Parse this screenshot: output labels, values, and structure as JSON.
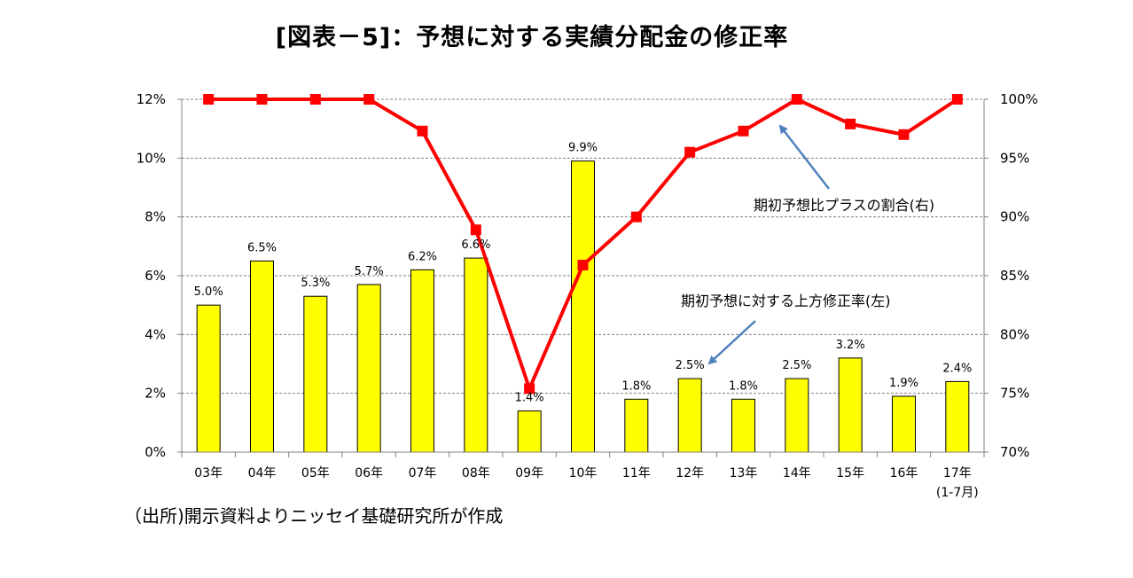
{
  "title": "[図表－5]：予想に対する実績分配金の修正率",
  "source_note": "（出所)開示資料よりニッセイ基礎研究所が作成",
  "chart_data": {
    "type": "bar+line",
    "categories": [
      "03年",
      "04年",
      "05年",
      "06年",
      "07年",
      "08年",
      "09年",
      "10年",
      "11年",
      "12年",
      "13年",
      "14年",
      "15年",
      "16年",
      "17年"
    ],
    "category_sublabel": {
      "index": 14,
      "text": "(1-7月)"
    },
    "series": [
      {
        "name": "期初予想に対する上方修正率(左)",
        "type": "bar",
        "axis": "left",
        "color": "#ffff00",
        "values": [
          5.0,
          6.5,
          5.3,
          5.7,
          6.2,
          6.6,
          1.4,
          9.9,
          1.8,
          2.5,
          1.8,
          2.5,
          3.2,
          1.9,
          2.4
        ],
        "data_labels": [
          "5.0%",
          "6.5%",
          "5.3%",
          "5.7%",
          "6.2%",
          "6.6%",
          "1.4%",
          "9.9%",
          "1.8%",
          "2.5%",
          "1.8%",
          "2.5%",
          "3.2%",
          "1.9%",
          "2.4%"
        ]
      },
      {
        "name": "期初予想比プラスの割合(右)",
        "type": "line",
        "axis": "right",
        "color": "#ff0000",
        "values": [
          100,
          100,
          100,
          100,
          97.3,
          88.9,
          75.4,
          85.9,
          90.0,
          95.5,
          97.3,
          100,
          97.9,
          97.0,
          100
        ]
      }
    ],
    "y_left": {
      "ylim": [
        0,
        12
      ],
      "ticks": [
        "0%",
        "2%",
        "4%",
        "6%",
        "8%",
        "10%",
        "12%"
      ]
    },
    "y_right": {
      "ylim": [
        70,
        100
      ],
      "ticks": [
        "70%",
        "75%",
        "80%",
        "85%",
        "90%",
        "95%",
        "100%"
      ]
    },
    "grid": "horizontal-dashed",
    "annotations": [
      {
        "text": "期初予想比プラスの割合(右)",
        "points_to": "14年"
      },
      {
        "text": "期初予想に対する上方修正率(左)",
        "points_to": "12年"
      }
    ]
  }
}
